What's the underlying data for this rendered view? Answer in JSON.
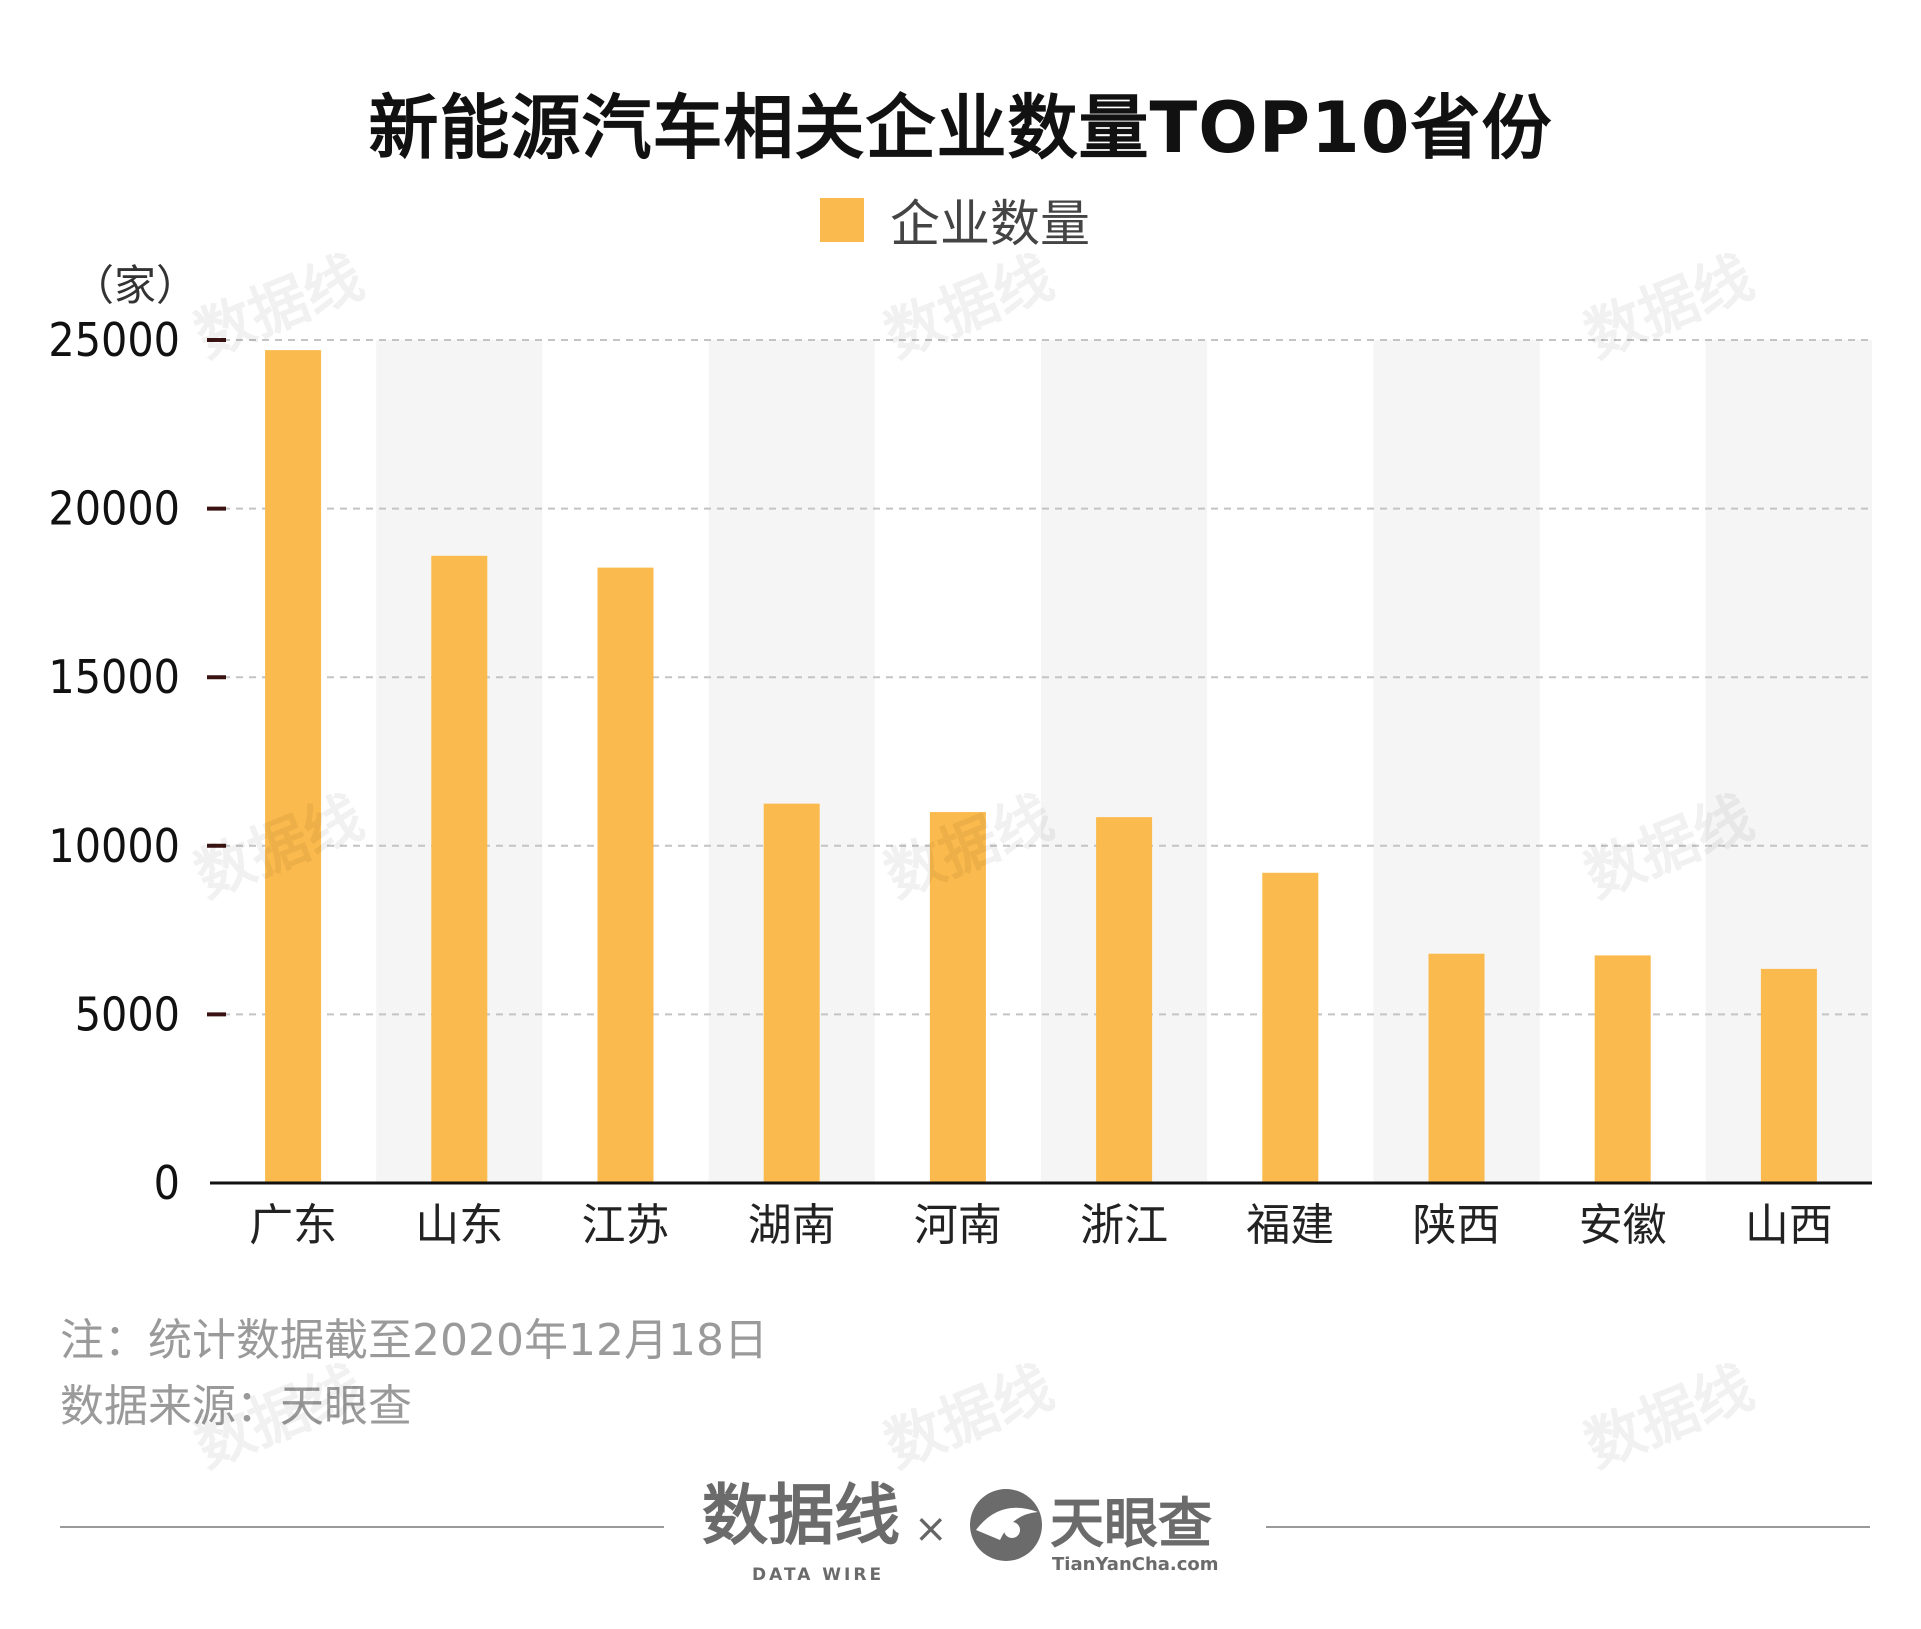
{
  "title": "新能源汽车相关企业数量TOP10省份",
  "legend": {
    "label": "企业数量",
    "color": "#FBBA4D"
  },
  "y_unit": "（家）",
  "chart_data": {
    "type": "bar",
    "categories": [
      "广东",
      "山东",
      "江苏",
      "湖南",
      "河南",
      "浙江",
      "福建",
      "陕西",
      "安徽",
      "山西"
    ],
    "series": [
      {
        "name": "企业数量",
        "values": [
          24700,
          18600,
          18250,
          11250,
          11000,
          10850,
          9200,
          6800,
          6750,
          6350
        ]
      }
    ],
    "ylim": [
      0,
      25000
    ],
    "yticks": [
      0,
      5000,
      10000,
      15000,
      20000,
      25000
    ],
    "grid": true,
    "bar_color": "#FBBA4D",
    "band_color": "#F5F5F5"
  },
  "note": {
    "line1": "注：统计数据截至2020年12月18日",
    "line2": "数据来源：天眼查"
  },
  "footer": {
    "brand1": "数据线",
    "brand1_sub": "DATA WIRE",
    "cross": "×",
    "brand2": "天眼查",
    "brand2_sub": "TianYanCha.com"
  },
  "watermark": {
    "text": "数据线",
    "sub": "DATA WIRE"
  }
}
